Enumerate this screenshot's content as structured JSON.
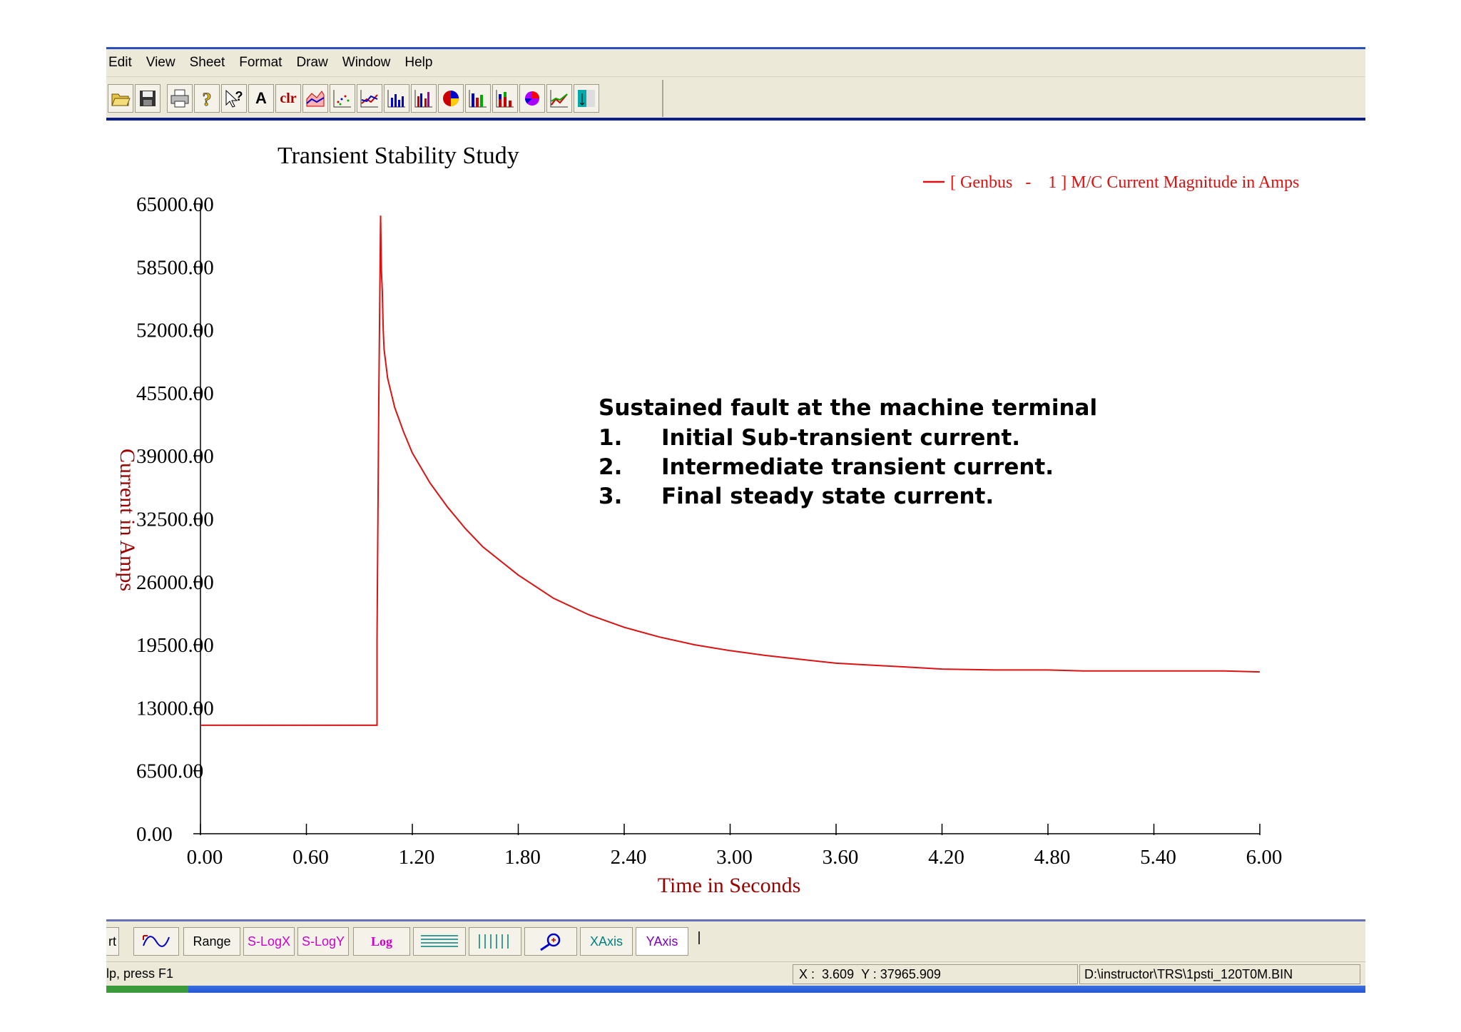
{
  "menu": [
    "Edit",
    "View",
    "Sheet",
    "Format",
    "Draw",
    "Window",
    "Help"
  ],
  "toolbar_icons": [
    "open-folder-icon",
    "save-icon",
    "print-icon",
    "help-question-icon",
    "context-help-icon",
    "text-font-icon",
    "clear-icon",
    "area-chart-icon",
    "scatter-chart-icon",
    "line-chart-icon",
    "bar-chart-icon",
    "multi-bar-chart-icon",
    "pie-chart-icon",
    "bar-chart-2-icon",
    "stacked-bar-chart-icon",
    "pie-chart-2-icon",
    "combo-chart-icon",
    "table-chart-icon"
  ],
  "toolbar": {
    "font_label": "A",
    "clear_label": "clr"
  },
  "chart_data": {
    "type": "line",
    "title": "Transient Stability Study",
    "xlabel": "Time in Seconds",
    "ylabel": "Current in Amps",
    "xlim": [
      0,
      6.0
    ],
    "ylim": [
      0,
      65000
    ],
    "xticks": [
      "0.00",
      "0.60",
      "1.20",
      "1.80",
      "2.40",
      "3.00",
      "3.60",
      "4.20",
      "4.80",
      "5.40",
      "6.00"
    ],
    "yticks": [
      "0.00",
      "6500.00",
      "13000.00",
      "19500.00",
      "26000.00",
      "32500.00",
      "39000.00",
      "45500.00",
      "52000.00",
      "58500.00",
      "65000.00"
    ],
    "legend": {
      "position": "top-right",
      "label": "[ Genbus   -    1 ] M/C Current Magnitude in Amps"
    },
    "series": [
      {
        "name": "[ Genbus   -    1 ] M/C Current Magnitude in Amps",
        "color": "#dd1111",
        "x": [
          0,
          1.0,
          1.0,
          1.01,
          1.02,
          1.025,
          1.03,
          1.035,
          1.04,
          1.06,
          1.1,
          1.15,
          1.2,
          1.3,
          1.4,
          1.5,
          1.6,
          1.8,
          2.0,
          2.2,
          2.4,
          2.6,
          2.8,
          3.0,
          3.2,
          3.4,
          3.6,
          3.8,
          4.0,
          4.2,
          4.5,
          4.8,
          5.0,
          5.4,
          5.8,
          6.0
        ],
        "y": [
          11200,
          11200,
          20000,
          45000,
          63800,
          58000,
          56000,
          52000,
          50000,
          47000,
          44000,
          41500,
          39300,
          36200,
          33700,
          31500,
          29600,
          26700,
          24300,
          22600,
          21300,
          20300,
          19500,
          18900,
          18400,
          18000,
          17600,
          17400,
          17200,
          17000,
          16900,
          16900,
          16800,
          16800,
          16800,
          16700
        ]
      }
    ]
  },
  "annotation": {
    "heading": "Sustained fault at the machine terminal",
    "items": [
      {
        "num": "1.",
        "text": "Initial Sub-transient current."
      },
      {
        "num": "2.",
        "text": "Intermediate transient current."
      },
      {
        "num": "3.",
        "text": "Final steady state current."
      }
    ]
  },
  "bottom_toolbar": [
    {
      "name": "print-button",
      "label": "rt",
      "color": "#000000"
    },
    {
      "name": "curve-button",
      "label": "",
      "color": "#0000cc"
    },
    {
      "name": "range-button",
      "label": "Range",
      "color": "#000000"
    },
    {
      "name": "semi-log-x-button",
      "label": "S-LogX",
      "color": "#cc00cc"
    },
    {
      "name": "semi-log-y-button",
      "label": "S-LogY",
      "color": "#cc00cc"
    },
    {
      "name": "log-button",
      "label": "Log",
      "color": "#cc00cc"
    },
    {
      "name": "horizontal-grid-button",
      "label": "",
      "color": "#008080"
    },
    {
      "name": "vertical-grid-button",
      "label": "",
      "color": "#008080"
    },
    {
      "name": "zoom-button",
      "label": "",
      "color": "#0000cc"
    },
    {
      "name": "x-axis-button",
      "label": "XAxis",
      "color": "#008080"
    },
    {
      "name": "y-axis-button",
      "label": "YAxis",
      "color": "#8000c0"
    }
  ],
  "status": {
    "help": "lp, press F1",
    "x_label": "X :",
    "x_value": "3.609",
    "y_label": "Y : 37965.909",
    "file_path": "D:\\instructor\\TRS\\1psti_120T0M.BIN"
  }
}
